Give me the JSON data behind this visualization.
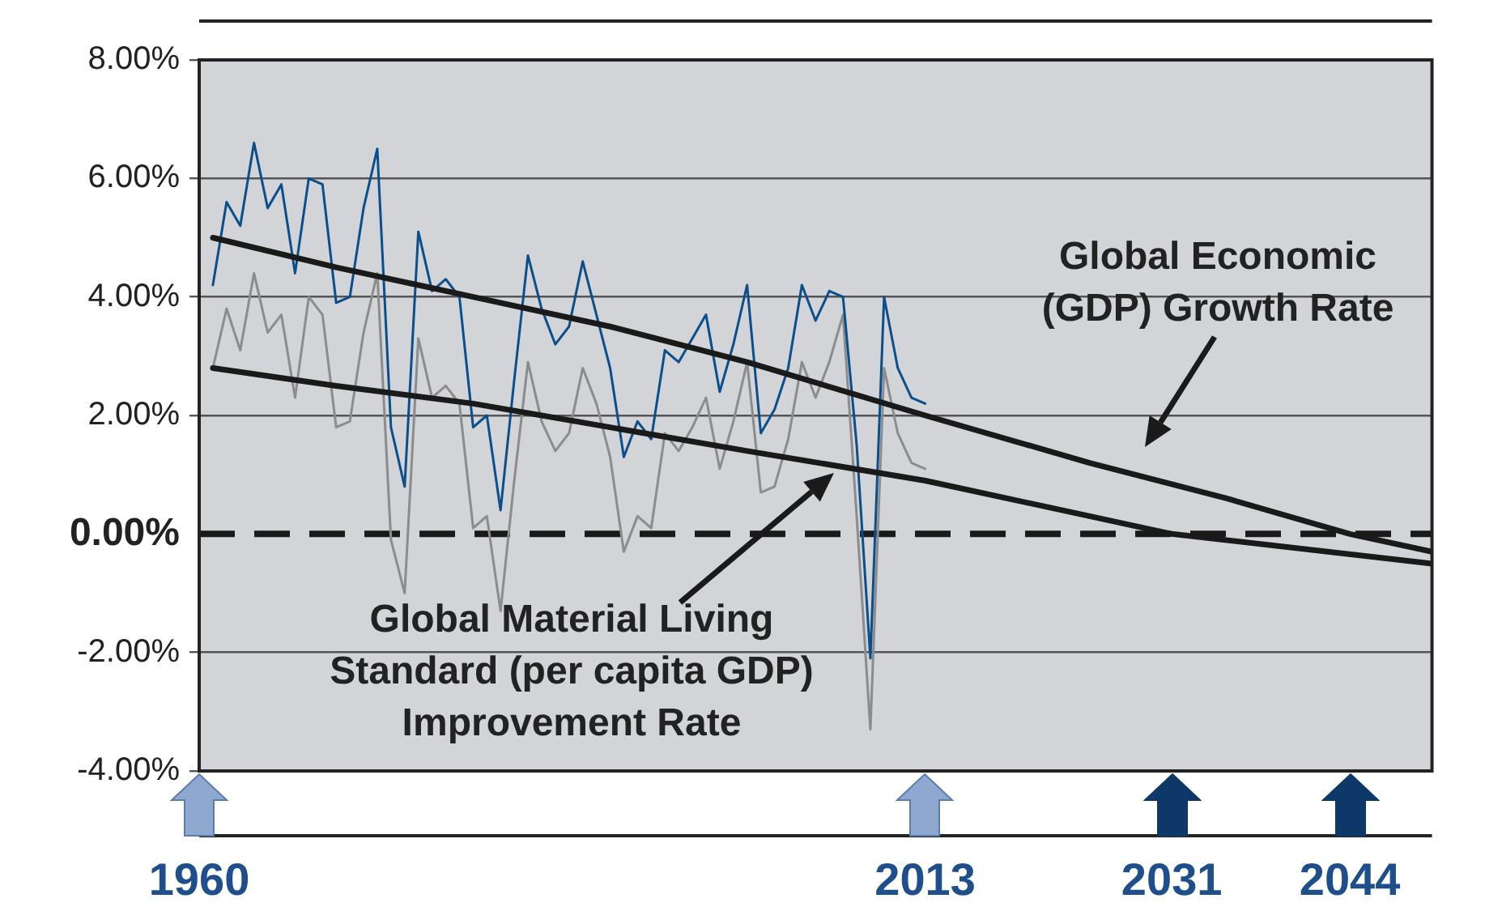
{
  "chart_data": {
    "type": "line",
    "series": [
      {
        "color": "#0a4f8c",
        "x": [
          1961,
          1962,
          1963,
          1964,
          1965,
          1966,
          1967,
          1968,
          1969,
          1970,
          1971,
          1972,
          1973,
          1974,
          1975,
          1976,
          1977,
          1978,
          1979,
          1980,
          1981,
          1982,
          1983,
          1984,
          1985,
          1986,
          1987,
          1988,
          1989,
          1990,
          1991,
          1992,
          1993,
          1994,
          1995,
          1996,
          1997,
          1998,
          1999,
          2000,
          2001,
          2002,
          2003,
          2004,
          2005,
          2006,
          2007,
          2008,
          2009,
          2010,
          2011,
          2012,
          2013
        ],
        "values": [
          4.2,
          5.6,
          5.2,
          6.6,
          5.5,
          5.9,
          4.4,
          6.0,
          5.9,
          3.9,
          4.0,
          5.5,
          6.5,
          1.8,
          0.8,
          5.1,
          4.1,
          4.3,
          4.0,
          1.8,
          2.0,
          0.4,
          2.6,
          4.7,
          3.8,
          3.2,
          3.5,
          4.6,
          3.7,
          2.8,
          1.3,
          1.9,
          1.6,
          3.1,
          2.9,
          3.3,
          3.7,
          2.4,
          3.2,
          4.2,
          1.7,
          2.1,
          2.8,
          4.2,
          3.6,
          4.1,
          4.0,
          1.5,
          -2.1,
          4.0,
          2.8,
          2.3,
          2.2
        ]
      },
      {
        "color": "#8c8c8c",
        "x": [
          1961,
          1962,
          1963,
          1964,
          1965,
          1966,
          1967,
          1968,
          1969,
          1970,
          1971,
          1972,
          1973,
          1974,
          1975,
          1976,
          1977,
          1978,
          1979,
          1980,
          1981,
          1982,
          1983,
          1984,
          1985,
          1986,
          1987,
          1988,
          1989,
          1990,
          1991,
          1992,
          1993,
          1994,
          1995,
          1996,
          1997,
          1998,
          1999,
          2000,
          2001,
          2002,
          2003,
          2004,
          2005,
          2006,
          2007,
          2008,
          2009,
          2010,
          2011,
          2012,
          2013
        ],
        "values": [
          2.8,
          3.8,
          3.1,
          4.4,
          3.4,
          3.7,
          2.3,
          4.0,
          3.7,
          1.8,
          1.9,
          3.4,
          4.4,
          -0.1,
          -1.0,
          3.3,
          2.3,
          2.5,
          2.2,
          0.1,
          0.3,
          -1.3,
          0.9,
          2.9,
          1.9,
          1.4,
          1.7,
          2.8,
          2.2,
          1.3,
          -0.3,
          0.3,
          0.1,
          1.7,
          1.4,
          1.8,
          2.3,
          1.1,
          1.9,
          2.9,
          0.7,
          0.8,
          1.6,
          2.9,
          2.3,
          2.9,
          3.7,
          0.3,
          -3.3,
          2.8,
          1.7,
          1.2,
          1.1
        ]
      },
      {
        "color": "#1a1a1a",
        "x": [
          1961,
          1970,
          1980,
          1990,
          2000,
          2013,
          2025,
          2035,
          2044,
          2050
        ],
        "values": [
          5.0,
          4.5,
          4.0,
          3.5,
          2.9,
          2.0,
          1.2,
          0.6,
          0.0,
          -0.3
        ]
      },
      {
        "color": "#1a1a1a",
        "x": [
          1961,
          1970,
          1980,
          1990,
          2000,
          2013,
          2022,
          2031,
          2050
        ],
        "values": [
          2.8,
          2.5,
          2.2,
          1.8,
          1.4,
          0.9,
          0.45,
          0.0,
          -0.5
        ]
      }
    ],
    "xlim": [
      1960,
      2050
    ],
    "xticks": [
      1960,
      2013,
      2031,
      2044
    ],
    "ylim": [
      -4,
      8
    ],
    "yticks": [
      {
        "value": -4,
        "label": "-4.00%"
      },
      {
        "value": -2,
        "label": "-2.00%"
      },
      {
        "value": 0,
        "label": "0.00%"
      },
      {
        "value": 2,
        "label": "2.00%"
      },
      {
        "value": 4,
        "label": "4.00%"
      },
      {
        "value": 6,
        "label": "6.00%"
      },
      {
        "value": 8,
        "label": "8.00%"
      }
    ],
    "ref_lines": [
      {
        "axis": "y",
        "value": 0,
        "color": "#1a1a1a",
        "line_style": "dashed"
      }
    ],
    "annotations": [
      "Global Economic\n(GDP) Growth Rate",
      "Global Material Living\nStandard (per capita GDP)\nImprovement Rate"
    ],
    "grid": "y",
    "legend": false,
    "marker": "none",
    "line_style": "solid"
  }
}
